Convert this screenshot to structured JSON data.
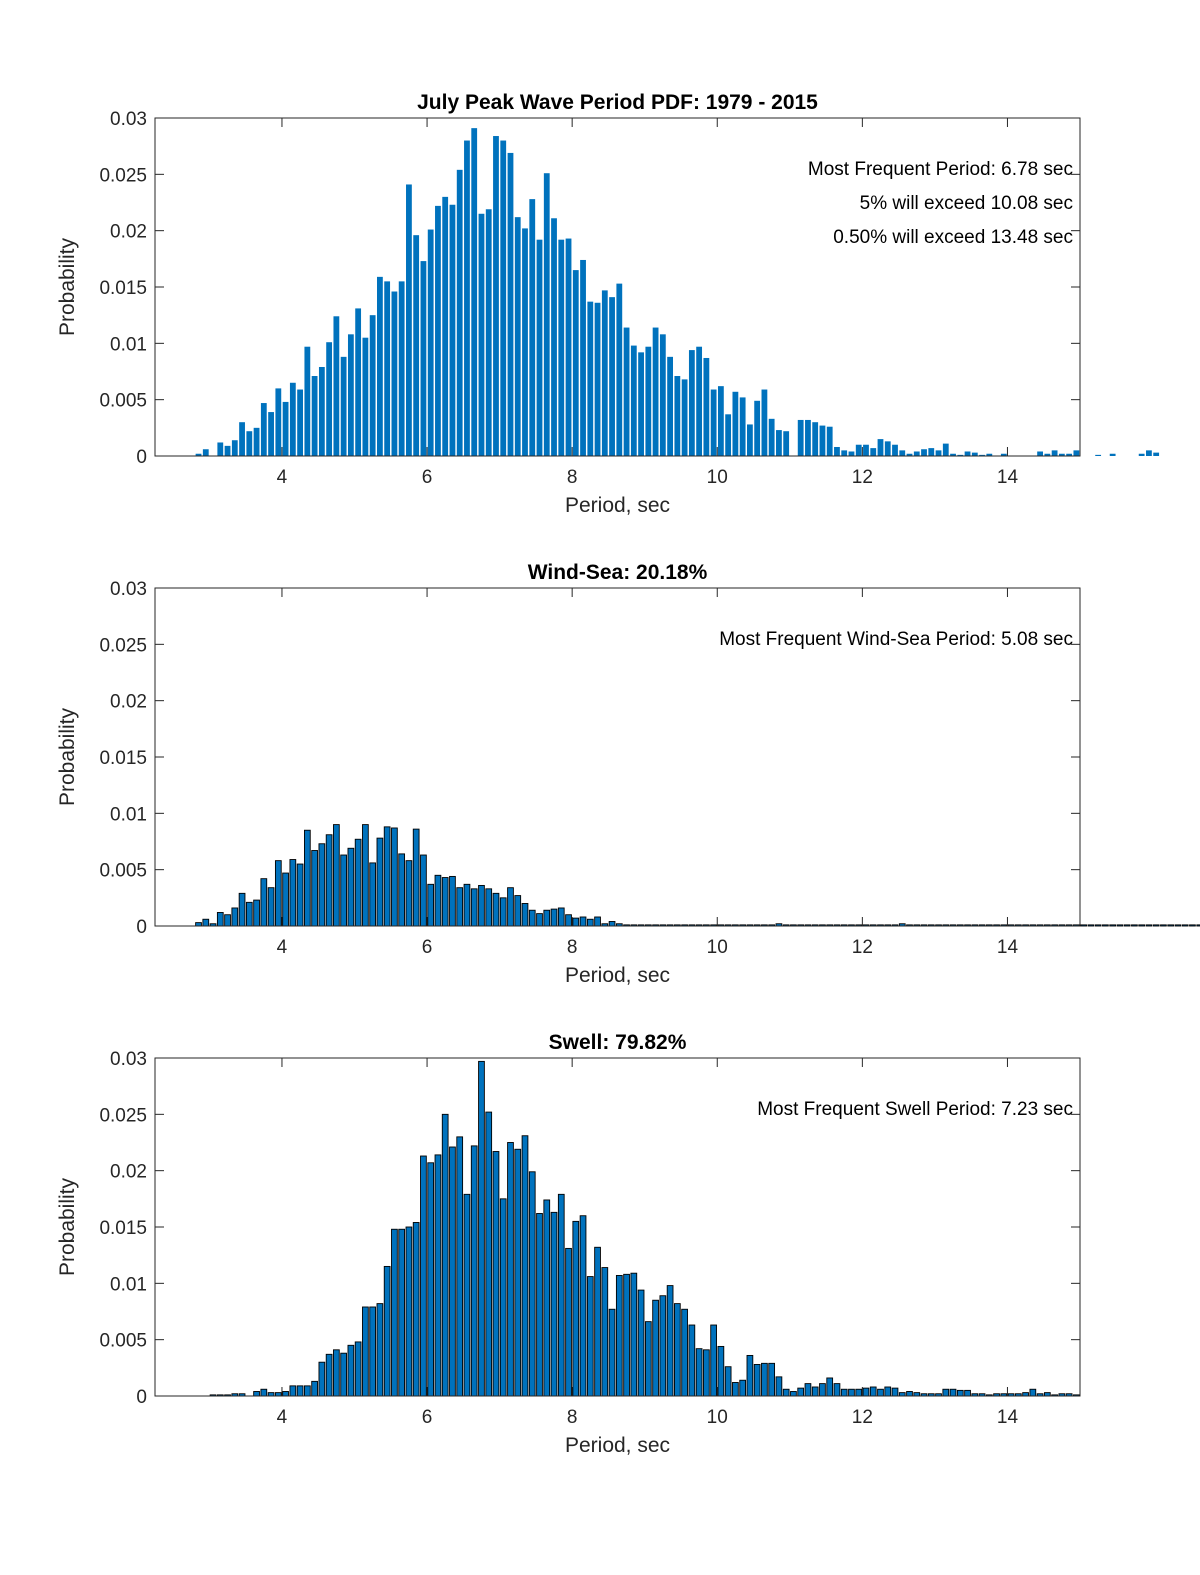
{
  "chart_data": [
    {
      "type": "bar",
      "title": "July Peak Wave Period PDF: 1979 - 2015",
      "xlabel": "Period, sec",
      "ylabel": "Probability",
      "xlim": [
        2.25,
        15
      ],
      "ylim": [
        0,
        0.03
      ],
      "xticks": [
        "4",
        "6",
        "8",
        "10",
        "12",
        "14"
      ],
      "yticks": [
        "0",
        "0.005",
        "0.01",
        "0.015",
        "0.02",
        "0.025",
        "0.03"
      ],
      "bar_color": "#0072BD",
      "bar_edge": false,
      "bin_width": 0.1,
      "x_start": 2.85,
      "grid": false,
      "annotations": [
        "Most Frequent Period: 6.78 sec",
        "5% will exceed 10.08 sec",
        "0.50% will exceed 13.48 sec"
      ],
      "values": [
        0.0002,
        0.0006,
        0,
        0.0012,
        0.0009,
        0.0014,
        0.003,
        0.0022,
        0.0025,
        0.0047,
        0.0039,
        0.006,
        0.0048,
        0.0065,
        0.0059,
        0.0097,
        0.0071,
        0.0079,
        0.0101,
        0.0124,
        0.0088,
        0.0108,
        0.0131,
        0.0105,
        0.0125,
        0.0159,
        0.0155,
        0.0146,
        0.0155,
        0.0241,
        0.0196,
        0.0173,
        0.0201,
        0.0222,
        0.023,
        0.0223,
        0.0254,
        0.028,
        0.0291,
        0.0215,
        0.0219,
        0.0284,
        0.028,
        0.0269,
        0.0212,
        0.0202,
        0.0228,
        0.0192,
        0.0251,
        0.0211,
        0.0192,
        0.0193,
        0.0165,
        0.0174,
        0.0137,
        0.0136,
        0.0147,
        0.0141,
        0.0153,
        0.0114,
        0.0098,
        0.0092,
        0.0097,
        0.0114,
        0.0108,
        0.0088,
        0.0071,
        0.0068,
        0.0094,
        0.0097,
        0.0087,
        0.0059,
        0.0062,
        0.0037,
        0.0057,
        0.0052,
        0.0028,
        0.0049,
        0.0059,
        0.0033,
        0.0023,
        0.0022,
        0,
        0.0032,
        0.0032,
        0.003,
        0.0027,
        0.0026,
        0.0008,
        0.0005,
        0.0004,
        0.001,
        0.001,
        0.0007,
        0.0015,
        0.0013,
        0.001,
        0.0005,
        0.0002,
        0.0004,
        0.0006,
        0.0007,
        0.0005,
        0.0011,
        0.0002,
        0.0001,
        0.0004,
        0.0003,
        0.0001,
        0.0002,
        0,
        0.0002,
        0,
        0,
        0,
        0,
        0.0004,
        0.0002,
        0.0005,
        0.0002,
        0.0002,
        0.0005,
        0,
        0,
        0.0001,
        0,
        0.0002,
        0,
        0,
        0,
        0.0002,
        0.0005,
        0.0003,
        0
      ]
    },
    {
      "type": "bar",
      "title": "Wind-Sea: 20.18%",
      "xlabel": "Period, sec",
      "ylabel": "Probability",
      "xlim": [
        2.25,
        15
      ],
      "ylim": [
        0,
        0.03
      ],
      "xticks": [
        "4",
        "6",
        "8",
        "10",
        "12",
        "14"
      ],
      "yticks": [
        "0",
        "0.005",
        "0.01",
        "0.015",
        "0.02",
        "0.025",
        "0.03"
      ],
      "bar_color": "#0072BD",
      "bar_edge": true,
      "bin_width": 0.1,
      "x_start": 2.85,
      "grid": false,
      "annotations": [
        "Most Frequent Wind-Sea Period: 5.08 sec"
      ],
      "values": [
        0.0003,
        0.0006,
        0.0002,
        0.0012,
        0.001,
        0.0016,
        0.0029,
        0.0021,
        0.0023,
        0.0042,
        0.0034,
        0.0058,
        0.0047,
        0.0059,
        0.0055,
        0.0085,
        0.0067,
        0.0073,
        0.0081,
        0.009,
        0.0063,
        0.0069,
        0.0077,
        0.009,
        0.0056,
        0.0078,
        0.0088,
        0.0087,
        0.0064,
        0.0058,
        0.0086,
        0.0063,
        0.0037,
        0.0045,
        0.0043,
        0.0044,
        0.0034,
        0.0037,
        0.0033,
        0.0036,
        0.0033,
        0.0029,
        0.0025,
        0.0034,
        0.0027,
        0.002,
        0.0014,
        0.0011,
        0.0014,
        0.0015,
        0.0016,
        0.001,
        0.0007,
        0.0008,
        0.0006,
        0.0008,
        0.0002,
        0.0004,
        0.0002,
        0.0001,
        0.0001,
        0.0001,
        0.0001,
        0.0001,
        0.0001,
        0.0001,
        0.0001,
        0.0001,
        0.0001,
        0.0001,
        0.0001,
        0.0001,
        0.0001,
        0.0001,
        0.0001,
        0.0001,
        0.0001,
        0.0001,
        0.0001,
        0.0001,
        0.0002,
        0.0001,
        0.0001,
        0.0001,
        0.0001,
        0.0001,
        0.0001,
        0.0001,
        0.0001,
        0.0001,
        0.0001,
        0.0001,
        0.0001,
        0.0001,
        0.0001,
        0.0001,
        0.0001,
        0.0002,
        0.0001,
        0.0001,
        0.0001,
        0.0001,
        0.0001,
        0.0001,
        0.0001,
        0.0001,
        0.0001,
        0.0001,
        0.0001,
        0.0001,
        0.0001,
        0.0001,
        0.0001,
        0.0001,
        0.0001,
        0.0001,
        0.0001,
        0.0001,
        0.0001,
        0.0001,
        0.0001,
        0.0001,
        0.0001,
        0.0001,
        0.0001,
        0.0001,
        0.0001,
        0.0001,
        0.0001,
        0.0001,
        0.0001,
        0.0001,
        0.0001,
        0.0001,
        0.0001,
        0.0001,
        0.0001,
        0.0001,
        0.0001,
        0.0001,
        0.0001,
        0.0001,
        0.0001,
        0.0001,
        0.0001,
        0.0001
      ]
    },
    {
      "type": "bar",
      "title": "Swell: 79.82%",
      "xlabel": "Period, sec",
      "ylabel": "Probability",
      "xlim": [
        2.25,
        15
      ],
      "ylim": [
        0,
        0.03
      ],
      "xticks": [
        "4",
        "6",
        "8",
        "10",
        "12",
        "14"
      ],
      "yticks": [
        "0",
        "0.005",
        "0.01",
        "0.015",
        "0.02",
        "0.025",
        "0.03"
      ],
      "bar_color": "#0072BD",
      "bar_edge": true,
      "bin_width": 0.1,
      "x_start": 2.85,
      "grid": false,
      "annotations": [
        "Most Frequent Swell Period: 7.23 sec"
      ],
      "values": [
        0,
        0,
        0.0001,
        0.0001,
        0.0001,
        0.0002,
        0.0002,
        0,
        0.0004,
        0.0006,
        0.0003,
        0.0003,
        0.0004,
        0.0009,
        0.0009,
        0.0009,
        0.0013,
        0.003,
        0.0037,
        0.0041,
        0.0038,
        0.0045,
        0.0048,
        0.0079,
        0.0079,
        0.0082,
        0.0115,
        0.0148,
        0.0148,
        0.015,
        0.0154,
        0.0213,
        0.0207,
        0.0214,
        0.025,
        0.0221,
        0.023,
        0.0179,
        0.0222,
        0.0297,
        0.0252,
        0.0217,
        0.0175,
        0.0225,
        0.0219,
        0.0231,
        0.0199,
        0.0162,
        0.0174,
        0.0163,
        0.0179,
        0.0131,
        0.0155,
        0.016,
        0.0106,
        0.0132,
        0.0114,
        0.0077,
        0.0107,
        0.0108,
        0.0109,
        0.0094,
        0.0066,
        0.0085,
        0.0089,
        0.0098,
        0.0082,
        0.0077,
        0.0063,
        0.0042,
        0.0041,
        0.0063,
        0.0044,
        0.0026,
        0.0012,
        0.0014,
        0.0036,
        0.0028,
        0.0029,
        0.0029,
        0.0017,
        0.0006,
        0.0004,
        0.0007,
        0.0011,
        0.0008,
        0.0011,
        0.0016,
        0.0011,
        0.0006,
        0.0006,
        0.0006,
        0.0007,
        0.0008,
        0.0006,
        0.0008,
        0.0007,
        0.0003,
        0.0004,
        0.0003,
        0.0002,
        0.0002,
        0.0002,
        0.0006,
        0.0006,
        0.0005,
        0.0005,
        0.0002,
        0.0002,
        0.0001,
        0.0002,
        0.0002,
        0.0002,
        0.0002,
        0.0003,
        0.0006,
        0.0002,
        0.0003,
        0.0001,
        0.0002,
        0.0002,
        0.0001
      ]
    }
  ]
}
